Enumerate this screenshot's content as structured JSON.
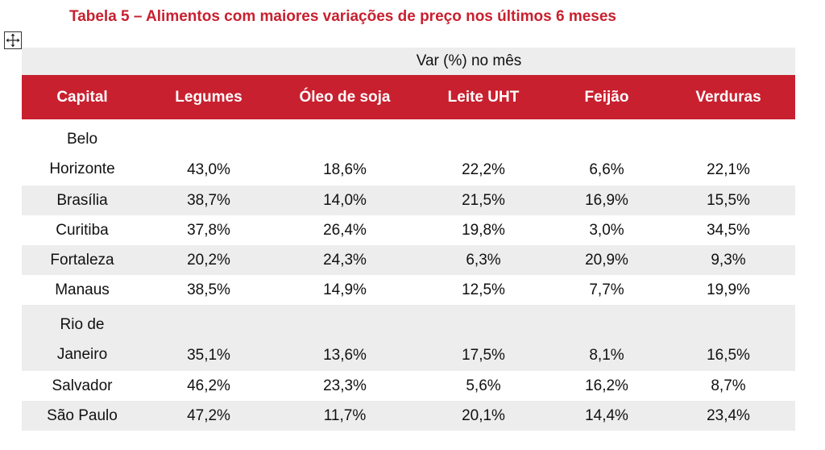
{
  "title": "Tabela 5 – Alimentos com maiores variações de preço nos últimos 6 meses",
  "icons": {
    "move": "move-arrows-icon"
  },
  "colors": {
    "accent": "#c8202f",
    "shade": "#ededed"
  },
  "table": {
    "super_header": "Var (%) no mês",
    "headers": [
      "Capital",
      "Legumes",
      "Óleo de soja",
      "Leite UHT",
      "Feijão",
      "Verduras"
    ],
    "rows": [
      {
        "capital": [
          "Belo",
          "Horizonte"
        ],
        "values": [
          "43,0%",
          "18,6%",
          "22,2%",
          "6,6%",
          "22,1%"
        ]
      },
      {
        "capital": [
          "Brasília"
        ],
        "values": [
          "38,7%",
          "14,0%",
          "21,5%",
          "16,9%",
          "15,5%"
        ]
      },
      {
        "capital": [
          "Curitiba"
        ],
        "values": [
          "37,8%",
          "26,4%",
          "19,8%",
          "3,0%",
          "34,5%"
        ]
      },
      {
        "capital": [
          "Fortaleza"
        ],
        "values": [
          "20,2%",
          "24,3%",
          "6,3%",
          "20,9%",
          "9,3%"
        ]
      },
      {
        "capital": [
          "Manaus"
        ],
        "values": [
          "38,5%",
          "14,9%",
          "12,5%",
          "7,7%",
          "19,9%"
        ]
      },
      {
        "capital": [
          "Rio de",
          "Janeiro"
        ],
        "values": [
          "35,1%",
          "13,6%",
          "17,5%",
          "8,1%",
          "16,5%"
        ]
      },
      {
        "capital": [
          "Salvador"
        ],
        "values": [
          "46,2%",
          "23,3%",
          "5,6%",
          "16,2%",
          "8,7%"
        ]
      },
      {
        "capital": [
          "São Paulo"
        ],
        "values": [
          "47,2%",
          "11,7%",
          "20,1%",
          "14,4%",
          "23,4%"
        ]
      }
    ]
  }
}
